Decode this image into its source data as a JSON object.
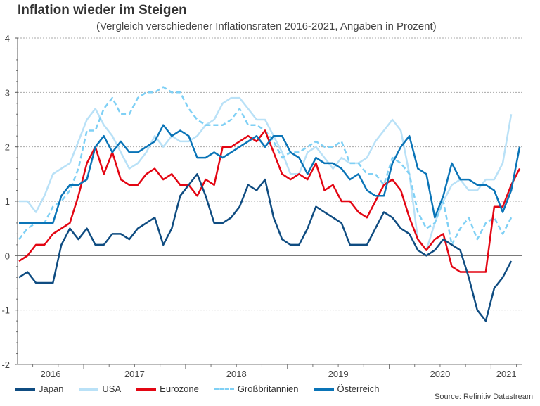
{
  "chart_data": {
    "type": "line",
    "title": "Inflation wieder im Steigen",
    "subtitle": "(Vergleich verschiedener Inflationsraten 2016-2021, Angaben in Prozent)",
    "xlabel": "",
    "ylabel": "",
    "ylim": [
      -2,
      4
    ],
    "yticks": [
      "-2",
      "-1",
      "0",
      "1",
      "2",
      "3",
      "4"
    ],
    "yticks_values": [
      -2,
      -1,
      0,
      1,
      2,
      3,
      4
    ],
    "xtick_labels": [
      "2016",
      "2017",
      "2018",
      "2019",
      "2020",
      "2021"
    ],
    "x_start": "2016-05",
    "x_frequency": "monthly",
    "grid": "horizontal dotted",
    "legend_position": "bottom-left",
    "source": "Source: Refinitiv Datastream",
    "series": [
      {
        "name": "Japan",
        "color": "#0f4c81",
        "style": "solid",
        "values": [
          -0.4,
          -0.3,
          -0.5,
          -0.5,
          -0.5,
          0.2,
          0.5,
          0.3,
          0.5,
          0.2,
          0.2,
          0.4,
          0.4,
          0.3,
          0.5,
          0.6,
          0.7,
          0.2,
          0.5,
          1.1,
          1.3,
          1.5,
          1.1,
          0.6,
          0.6,
          0.7,
          0.9,
          1.3,
          1.2,
          1.4,
          0.7,
          0.3,
          0.2,
          0.2,
          0.5,
          0.9,
          0.8,
          0.7,
          0.6,
          0.2,
          0.2,
          0.2,
          0.5,
          0.8,
          0.7,
          0.5,
          0.4,
          0.1,
          0.0,
          0.1,
          0.3,
          0.2,
          0.1,
          -0.4,
          -1.0,
          -1.2,
          -0.6,
          -0.4,
          -0.1
        ]
      },
      {
        "name": "USA",
        "color": "#b9e1f7",
        "style": "solid",
        "values": [
          1.0,
          1.0,
          0.8,
          1.1,
          1.5,
          1.6,
          1.7,
          2.1,
          2.5,
          2.7,
          2.4,
          2.2,
          1.9,
          1.6,
          1.7,
          1.9,
          2.2,
          2.0,
          2.2,
          2.1,
          2.1,
          2.2,
          2.4,
          2.5,
          2.8,
          2.9,
          2.9,
          2.7,
          2.5,
          2.5,
          2.2,
          1.9,
          1.5,
          1.5,
          1.9,
          2.0,
          1.8,
          1.6,
          1.8,
          1.7,
          1.7,
          1.8,
          2.1,
          2.3,
          2.5,
          2.3,
          1.5,
          0.3,
          0.1,
          0.6,
          1.0,
          1.3,
          1.4,
          1.2,
          1.2,
          1.4,
          1.4,
          1.7,
          2.6
        ]
      },
      {
        "name": "Eurozone",
        "color": "#e30613",
        "style": "solid",
        "values": [
          -0.1,
          0.0,
          0.2,
          0.2,
          0.4,
          0.5,
          0.6,
          1.1,
          1.7,
          2.0,
          1.5,
          1.9,
          1.4,
          1.3,
          1.3,
          1.5,
          1.6,
          1.4,
          1.5,
          1.3,
          1.3,
          1.1,
          1.4,
          1.3,
          2.0,
          2.0,
          2.1,
          2.2,
          2.1,
          2.3,
          1.9,
          1.5,
          1.4,
          1.5,
          1.4,
          1.7,
          1.2,
          1.3,
          1.0,
          1.0,
          0.8,
          0.7,
          1.0,
          1.3,
          1.4,
          1.2,
          0.7,
          0.3,
          0.1,
          0.3,
          0.4,
          -0.2,
          -0.3,
          -0.3,
          -0.3,
          -0.3,
          0.9,
          0.9,
          1.3,
          1.6
        ]
      },
      {
        "name": "Großbritannien",
        "color": "#7fd0f5",
        "style": "dashed",
        "values": [
          0.3,
          0.5,
          0.6,
          0.6,
          0.9,
          1.0,
          1.2,
          1.6,
          2.3,
          2.3,
          2.7,
          2.9,
          2.6,
          2.6,
          2.9,
          3.0,
          3.0,
          3.1,
          3.0,
          3.0,
          2.7,
          2.5,
          2.4,
          2.4,
          2.4,
          2.5,
          2.7,
          2.4,
          2.4,
          2.3,
          2.1,
          1.8,
          1.9,
          1.9,
          2.0,
          2.1,
          2.0,
          2.0,
          2.1,
          1.7,
          1.7,
          1.5,
          1.5,
          1.3,
          1.8,
          1.7,
          1.5,
          0.8,
          0.5,
          0.6,
          1.0,
          0.2,
          0.5,
          0.7,
          0.3,
          0.6,
          0.7,
          0.4,
          0.7
        ]
      },
      {
        "name": "Österreich",
        "color": "#0a74b7",
        "style": "solid",
        "values": [
          0.6,
          0.6,
          0.6,
          0.6,
          0.6,
          1.1,
          1.3,
          1.3,
          1.4,
          2.0,
          2.2,
          1.9,
          2.1,
          1.9,
          1.9,
          2.0,
          2.1,
          2.4,
          2.2,
          2.3,
          2.2,
          1.8,
          1.8,
          1.9,
          1.8,
          1.9,
          2.0,
          2.1,
          2.2,
          2.0,
          2.2,
          2.2,
          1.9,
          1.8,
          1.5,
          1.8,
          1.7,
          1.7,
          1.6,
          1.4,
          1.5,
          1.2,
          1.1,
          1.1,
          1.7,
          2.0,
          2.2,
          1.6,
          1.5,
          0.7,
          1.1,
          1.7,
          1.4,
          1.4,
          1.3,
          1.3,
          1.2,
          0.8,
          1.2,
          2.0
        ]
      }
    ]
  },
  "legend": {
    "items": [
      {
        "label": "Japan"
      },
      {
        "label": "USA"
      },
      {
        "label": "Eurozone"
      },
      {
        "label": "Großbritannien"
      },
      {
        "label": "Österreich"
      }
    ]
  }
}
